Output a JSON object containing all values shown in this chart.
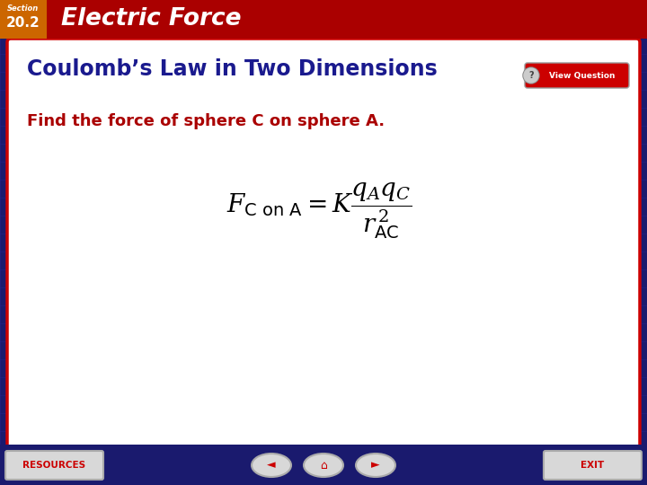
{
  "header_bg_color": "#AA0000",
  "header_orange_color": "#CC6600",
  "header_title": "Electric Force",
  "header_title_color": "#FFFFFF",
  "footer_bg_color": "#1a1a6e",
  "main_bg_color": "#1a1a6e",
  "content_bg_color": "#FFFFFF",
  "subtitle_text": "Coulomb’s Law in Two Dimensions",
  "subtitle_color": "#1a1a8e",
  "find_text": "Find the force of sphere C on sphere A.",
  "find_text_color": "#AA0000",
  "formula_color": "#000000",
  "view_question_bg": "#CC0000",
  "view_question_text": "View Question",
  "resources_text": "RESOURCES",
  "exit_text": "EXIT",
  "nav_button_color": "#CC0000",
  "grid_color": "#2a2a9e",
  "content_border_color": "#CC0000",
  "button_face_color": "#d8d8d8",
  "button_edge_color": "#aaaaaa"
}
